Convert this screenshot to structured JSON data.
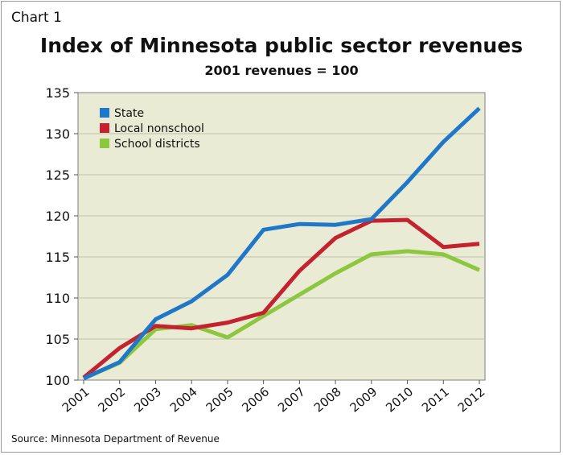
{
  "chart_label": "Chart 1",
  "source": "Source: Minnesota Department of Revenue",
  "colors": {
    "plot_background": "#e9ebd4",
    "grid": "#bfc1ad",
    "state": "#1f77c9",
    "local_nonschool": "#c3222e",
    "school_districts": "#8dc63f"
  },
  "chart_data": {
    "type": "line",
    "title": "Index of Minnesota public sector revenues",
    "subtitle": "2001 revenues = 100",
    "xlabel": "",
    "ylabel": "",
    "x": [
      "2001",
      "2002",
      "2003",
      "2004",
      "2005",
      "2006",
      "2007",
      "2008",
      "2009",
      "2010",
      "2011",
      "2012"
    ],
    "ylim": [
      100,
      135
    ],
    "yticks": [
      100,
      105,
      110,
      115,
      120,
      125,
      130,
      135
    ],
    "grid": true,
    "legend_position": "top-left",
    "series": [
      {
        "name": "State",
        "color": "#1f77c9",
        "values": [
          100.2,
          102.2,
          107.4,
          109.6,
          112.8,
          118.3,
          119.0,
          118.9,
          119.6,
          124.1,
          129.0,
          133.1
        ]
      },
      {
        "name": "Local nonschool",
        "color": "#c3222e",
        "values": [
          100.3,
          103.9,
          106.6,
          106.3,
          107.0,
          108.2,
          113.3,
          117.3,
          119.4,
          119.5,
          116.2,
          116.6
        ]
      },
      {
        "name": "School districts",
        "color": "#8dc63f",
        "values": [
          100.2,
          102.1,
          106.2,
          106.7,
          105.2,
          107.8,
          110.4,
          113.0,
          115.3,
          115.7,
          115.3,
          113.4
        ]
      }
    ]
  }
}
